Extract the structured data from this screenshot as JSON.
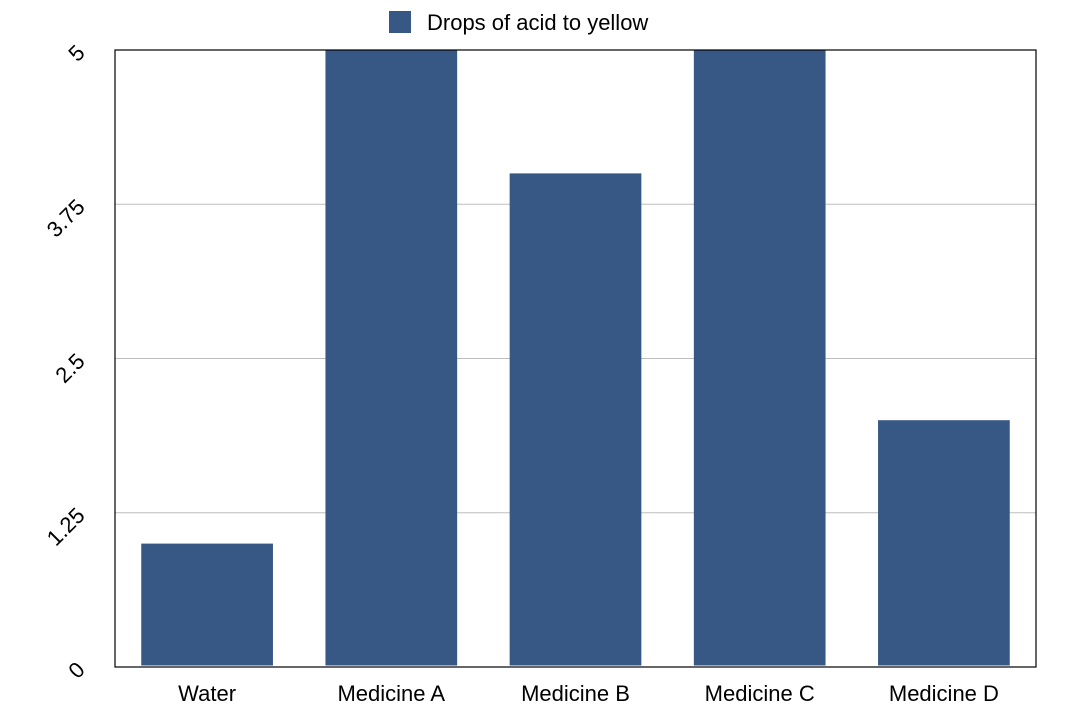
{
  "chart_data": {
    "type": "bar",
    "categories": [
      "Water",
      "Medicine A",
      "Medicine B",
      "Medicine C",
      "Medicine D"
    ],
    "series": [
      {
        "name": "Drops of acid to yellow",
        "values": [
          1,
          5,
          4,
          5,
          2
        ],
        "color": "#375785"
      }
    ],
    "ylim": [
      0,
      5
    ],
    "yticks": [
      "0",
      "1.25",
      "2.5",
      "3.75",
      "5"
    ],
    "ytick_values": [
      0,
      1.25,
      2.5,
      3.75,
      5
    ],
    "grid": true,
    "grid_color": "#bdbdbd",
    "legend_position": "top-center",
    "xlabel": "",
    "ylabel": ""
  }
}
